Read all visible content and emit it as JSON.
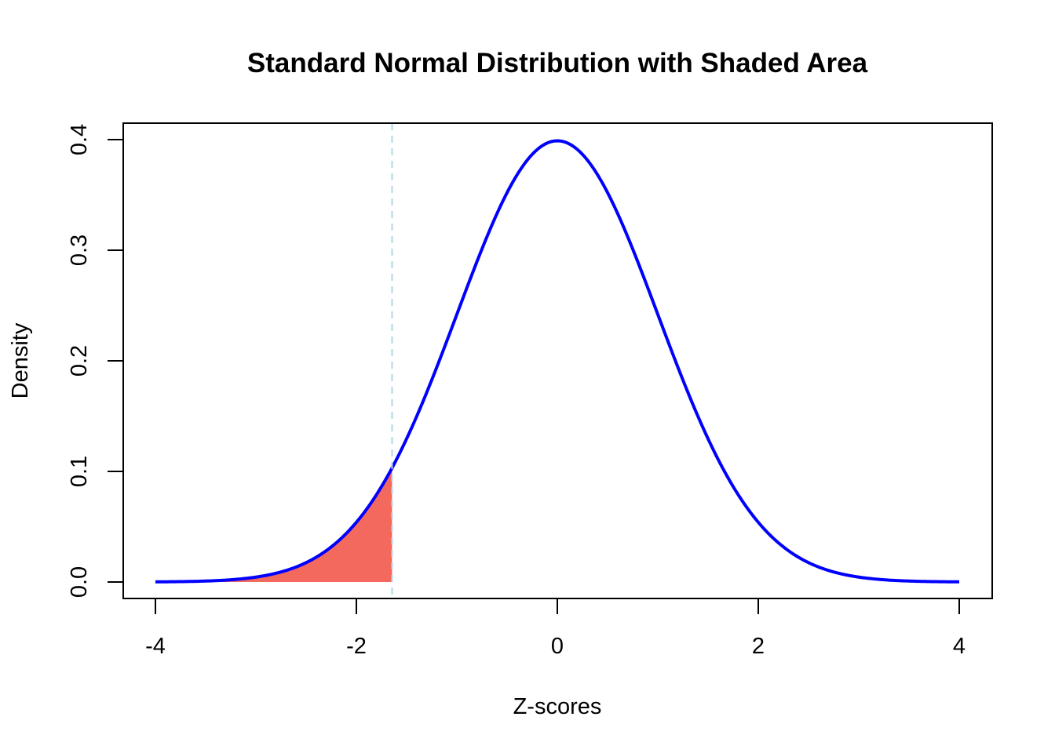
{
  "chart_data": {
    "type": "line",
    "title": "Standard Normal Distribution with Shaded Area",
    "xlabel": "Z-scores",
    "ylabel": "Density",
    "xlim": [
      -4,
      4
    ],
    "ylim": [
      0,
      0.4
    ],
    "x_ticks": [
      -4,
      -2,
      0,
      2,
      4
    ],
    "x_tick_labels": [
      "-4",
      "-2",
      "0",
      "2",
      "4"
    ],
    "y_ticks": [
      0.0,
      0.1,
      0.2,
      0.3,
      0.4
    ],
    "y_tick_labels": [
      "0.0",
      "0.1",
      "0.2",
      "0.3",
      "0.4"
    ],
    "series": [
      {
        "distribution": "standard normal density",
        "mean": 0,
        "sd": 1,
        "x_range": [
          -4,
          4
        ],
        "color": "#0000FF"
      }
    ],
    "shaded_region": {
      "from": -4,
      "to": -1.645,
      "color": "#F4695E"
    },
    "reference_line": {
      "x": -1.645,
      "style": "dashed",
      "color": "#ADD8E6"
    },
    "grid": false,
    "legend": "none"
  }
}
